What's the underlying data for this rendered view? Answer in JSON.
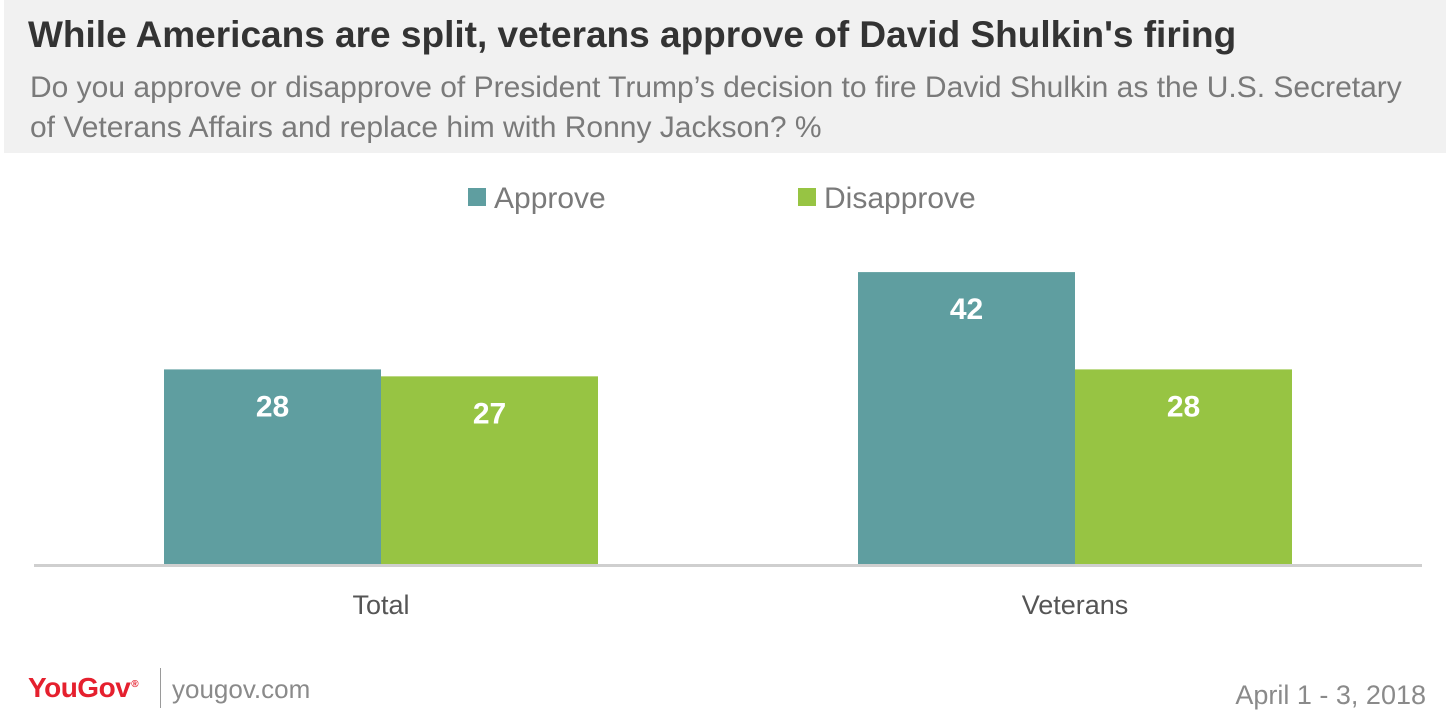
{
  "header": {
    "title": "While Americans are split, veterans approve of David Shulkin's firing",
    "subtitle": "Do you approve or disapprove of President Trump’s decision to fire David Shulkin as the U.S. Secretary of Veterans Affairs and replace him with Ronny Jackson? %"
  },
  "chart_data": {
    "type": "bar",
    "categories": [
      "Total",
      "Veterans"
    ],
    "series": [
      {
        "name": "Approve",
        "values": [
          28,
          42
        ],
        "color": "#5f9ea0"
      },
      {
        "name": "Disapprove",
        "values": [
          27,
          28
        ],
        "color": "#97c443"
      }
    ],
    "title": "While Americans are split, veterans approve of David Shulkin's firing",
    "xlabel": "",
    "ylabel": "",
    "ylim": [
      0,
      50
    ],
    "grid": false,
    "legend": "top-center",
    "data_labels": true
  },
  "footer": {
    "brand": "YouGov",
    "site": "yougov.com",
    "date": "April 1 - 3, 2018"
  }
}
